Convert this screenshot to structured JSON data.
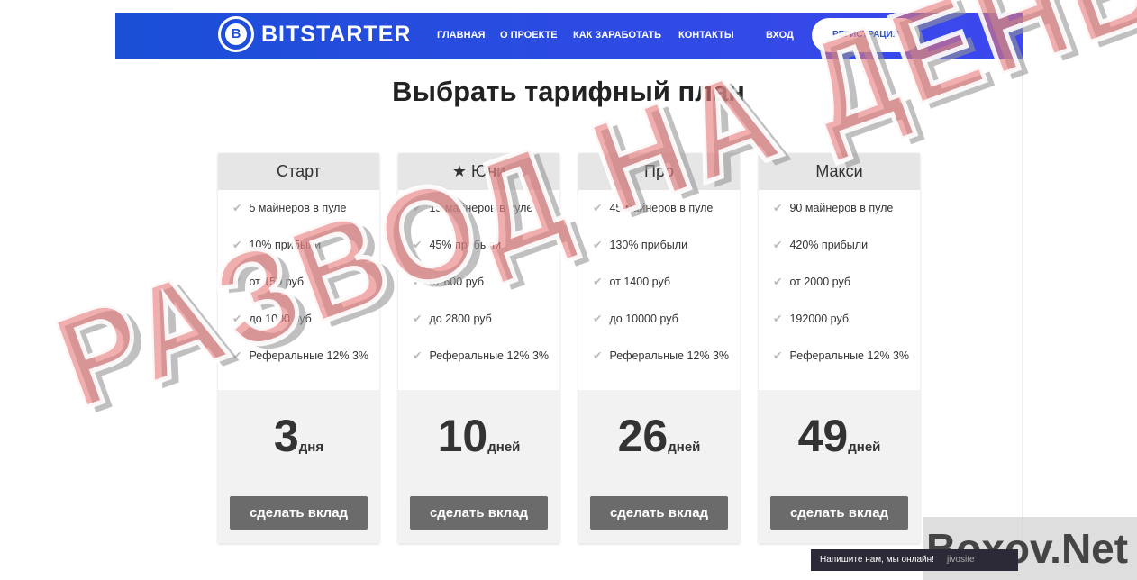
{
  "nav": {
    "brand": "BITSTARTER",
    "logo_glyph": "B",
    "items": [
      "ГЛАВНАЯ",
      "О ПРОЕКТЕ",
      "КАК ЗАРАБОТАТЬ",
      "КОНТАКТЫ",
      "ВХОД"
    ],
    "register": "РЕГИСТРАЦИЯ"
  },
  "title": "Выбрать тарифный план",
  "plans": [
    {
      "name": "Старт",
      "features": [
        "5 майнеров в пуле",
        "10% прибыли",
        "от 150 руб",
        "до 1000 руб",
        "Реферальные 12% 3%"
      ],
      "days": "3",
      "unit": "дня",
      "button": "сделать вклад"
    },
    {
      "name": "Юни",
      "features": [
        "15 майнеров в пуле",
        "45% прибыли",
        "от 600 руб",
        "до 2800 руб",
        "Реферальные 12% 3%"
      ],
      "days": "10",
      "unit": "дней",
      "button": "сделать вклад"
    },
    {
      "name": "Про",
      "features": [
        "45 майнеров в пуле",
        "130% прибыли",
        "от 1400 руб",
        "до 10000 руб",
        "Реферальные 12% 3%"
      ],
      "days": "26",
      "unit": "дней",
      "button": "сделать вклад"
    },
    {
      "name": "Макси",
      "features": [
        "90 майнеров в пуле",
        "420% прибыли",
        "от 2000 руб",
        "192000 руб",
        "Реферальные 12% 3%"
      ],
      "days": "49",
      "unit": "дней",
      "button": "сделать вклад"
    }
  ],
  "watermark": "РАЗВОД НА ДЕНЬГИ",
  "chat": {
    "text": "Напишите нам, мы онлайн!",
    "brand": "jivosite"
  },
  "site_watermark": "Boxov.Net"
}
